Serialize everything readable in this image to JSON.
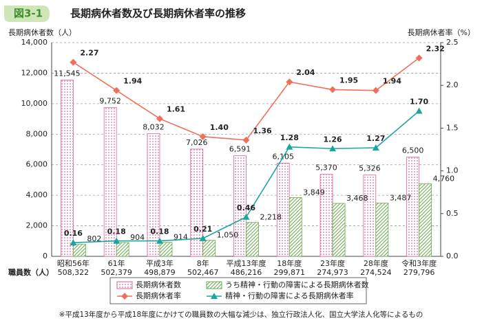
{
  "chart_data": {
    "type": "bar-line",
    "figure_label": "図3-1",
    "title": "長期病休者数及び長期病休者率の推移",
    "y_label": "長期病休者数（人）",
    "y2_label": "長期病休者率（%）",
    "categories": [
      "昭和56年",
      "61年",
      "平成3年",
      "8年",
      "平成13年度",
      "18年度",
      "23年度",
      "28年度",
      "令和3年度"
    ],
    "staff_label": "職員数（人）",
    "staff_counts": [
      "508,322",
      "502,379",
      "498,879",
      "502,467",
      "486,216",
      "299,871",
      "274,973",
      "274,524",
      "279,796"
    ],
    "series": [
      {
        "name": "長期病休者数",
        "kind": "bar",
        "color": "#d9639f",
        "values": [
          11545,
          9752,
          8032,
          7026,
          6591,
          6105,
          5370,
          5326,
          6500
        ],
        "value_labels": [
          "11,545",
          "9,752",
          "8,032",
          "7,026",
          "6,591",
          "6,105",
          "5,370",
          "5,326",
          "6,500"
        ]
      },
      {
        "name": "うち精神・行動の障害による長期病休者数",
        "kind": "bar",
        "color": "#6aa84f",
        "values": [
          802,
          904,
          914,
          1050,
          2218,
          3849,
          3468,
          3487,
          4760
        ],
        "value_labels": [
          "802",
          "904",
          "914",
          "1,050",
          "2,218",
          "3,849",
          "3,468",
          "3,487",
          "4,760"
        ]
      },
      {
        "name": "長期病休者率",
        "kind": "line",
        "axis": "y2",
        "color": "#ee6f5a",
        "marker": "diamond",
        "values": [
          2.27,
          1.94,
          1.61,
          1.4,
          1.36,
          2.04,
          1.95,
          1.94,
          2.32
        ],
        "value_labels": [
          "2.27",
          "1.94",
          "1.61",
          "1.40",
          "1.36",
          "2.04",
          "1.95",
          "1.94",
          "2.32"
        ]
      },
      {
        "name": "精神・行動の障害による長期病休者率",
        "kind": "line",
        "axis": "y2",
        "color": "#1aa5a0",
        "marker": "triangle",
        "values": [
          0.16,
          0.18,
          0.18,
          0.21,
          0.46,
          1.28,
          1.26,
          1.27,
          1.7
        ],
        "value_labels": [
          "0.16",
          "0.18",
          "0.18",
          "0.21",
          "0.46",
          "1.28",
          "1.26",
          "1.27",
          "1.70"
        ]
      }
    ],
    "ylim": [
      0,
      14000
    ],
    "yticks": [
      0,
      {
        "value": 2000,
        "label": "2,000"
      },
      {
        "value": 4000,
        "label": "4,000"
      },
      {
        "value": 6000,
        "label": "6,000"
      },
      {
        "value": 8000,
        "label": "8,000"
      },
      {
        "value": 10000,
        "label": "10,000"
      },
      {
        "value": 12000,
        "label": "12,000"
      },
      {
        "value": 14000,
        "label": "14,000"
      }
    ],
    "y2lim": [
      0,
      2.5
    ],
    "y2ticks": [
      {
        "value": 0,
        "label": "0.0"
      },
      0.5,
      {
        "value": 1,
        "label": "1.0"
      },
      1.5,
      {
        "value": 2,
        "label": "2.0"
      },
      2.5
    ],
    "grid": true,
    "footnote": "※平成13年度から平成18年度にかけての職員数の大幅な減少は、独立行政法人化、国立大学法人化等によるもの"
  }
}
